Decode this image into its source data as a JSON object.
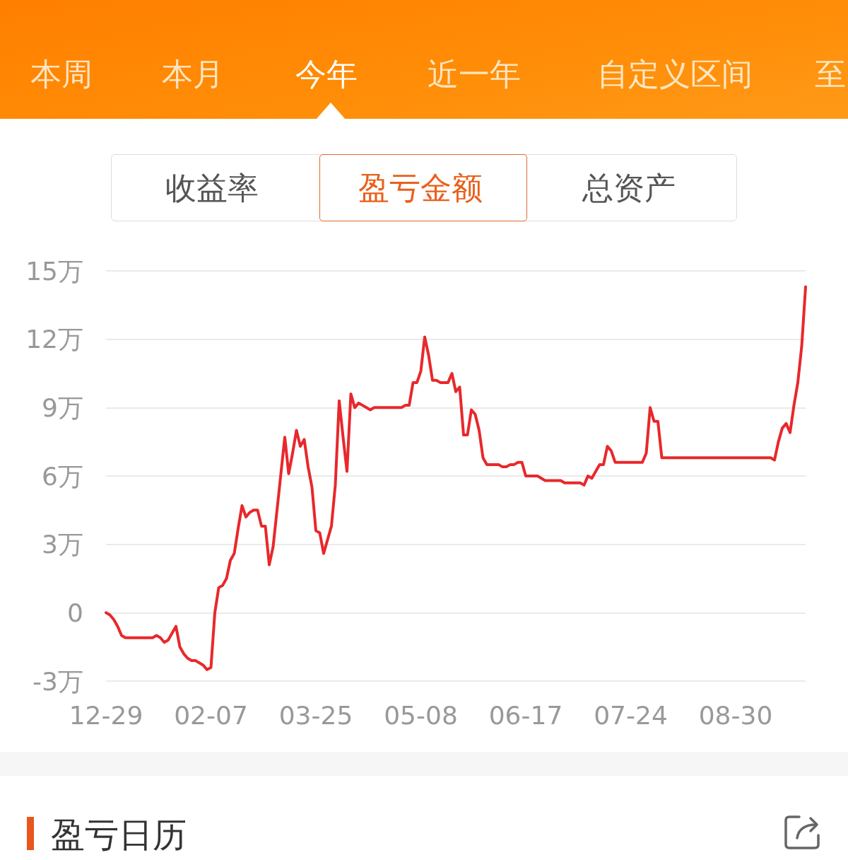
{
  "chart_data": {
    "type": "line",
    "annotations": [
      "本周",
      "本月",
      "今年",
      "近一年",
      "自定义区间",
      "至",
      "收益率",
      "盈亏金额",
      "总资产",
      "盈亏日历"
    ],
    "categories": [
      "12-29",
      null,
      null,
      null,
      null,
      null,
      null,
      null,
      null,
      null,
      null,
      null,
      null,
      null,
      null,
      null,
      null,
      null,
      null,
      null,
      null,
      null,
      null,
      null,
      null,
      null,
      null,
      "02-07",
      null,
      null,
      null,
      null,
      null,
      null,
      null,
      null,
      null,
      null,
      null,
      null,
      null,
      null,
      null,
      null,
      null,
      null,
      null,
      null,
      null,
      null,
      null,
      null,
      null,
      null,
      "03-25",
      null,
      null,
      null,
      null,
      null,
      null,
      null,
      null,
      null,
      null,
      null,
      null,
      null,
      null,
      null,
      null,
      null,
      null,
      null,
      null,
      null,
      null,
      null,
      null,
      null,
      null,
      "05-08",
      null,
      null,
      null,
      null,
      null,
      null,
      null,
      null,
      null,
      null,
      null,
      null,
      null,
      null,
      null,
      null,
      null,
      null,
      null,
      null,
      null,
      null,
      null,
      null,
      null,
      null,
      "06-17",
      null,
      null,
      null,
      null,
      null,
      null,
      null,
      null,
      null,
      null,
      null,
      null,
      null,
      null,
      null,
      null,
      null,
      null,
      null,
      null,
      null,
      null,
      null,
      null,
      null,
      null,
      "07-24",
      null,
      null,
      null,
      null,
      null,
      null,
      null,
      null,
      null,
      null,
      null,
      null,
      null,
      null,
      null,
      null,
      null,
      null,
      null,
      null,
      null,
      null,
      null,
      null,
      null,
      null,
      "08-30",
      null,
      null,
      null,
      null,
      null,
      null,
      null,
      null,
      null,
      null,
      null,
      null,
      null,
      null,
      null,
      null,
      null,
      null
    ],
    "values": [
      0,
      -0.1,
      -0.3,
      -0.6,
      -1,
      -1.1,
      -1.1,
      -1.1,
      -1.1,
      -1.1,
      -1.1,
      -1.1,
      -1.1,
      -1,
      -1.1,
      -1.3,
      -1.2,
      -0.9,
      -0.6,
      -1.5,
      -1.8,
      -2,
      -2.1,
      -2.1,
      -2.2,
      -2.3,
      -2.5,
      -2.4,
      0,
      1.1,
      1.2,
      1.5,
      2.3,
      2.6,
      3.7,
      4.7,
      4.2,
      4.4,
      4.5,
      4.5,
      3.8,
      3.8,
      2.1,
      2.9,
      4.5,
      6.1,
      7.7,
      6.1,
      7,
      8,
      7.3,
      7.6,
      6.4,
      5.5,
      3.6,
      3.5,
      2.6,
      3.2,
      3.8,
      5.6,
      9.3,
      7.7,
      6.2,
      9.6,
      9,
      9.2,
      9.1,
      9,
      8.9,
      9,
      9,
      9,
      9,
      9,
      9,
      9,
      9,
      9.1,
      9.1,
      10.1,
      10.1,
      10.6,
      12.1,
      11.3,
      10.2,
      10.2,
      10.1,
      10.1,
      10.1,
      10.5,
      9.7,
      9.9,
      7.8,
      7.8,
      8.9,
      8.7,
      8,
      6.8,
      6.5,
      6.5,
      6.5,
      6.5,
      6.4,
      6.4,
      6.5,
      6.5,
      6.6,
      6.6,
      6,
      6,
      6,
      6,
      5.9,
      5.8,
      5.8,
      5.8,
      5.8,
      5.8,
      5.7,
      5.7,
      5.7,
      5.7,
      5.7,
      5.6,
      6,
      5.9,
      6.2,
      6.5,
      6.5,
      7.3,
      7.1,
      6.6,
      6.6,
      6.6,
      6.6,
      6.6,
      6.6,
      6.6,
      6.6,
      7,
      9,
      8.4,
      8.4,
      6.8,
      6.8,
      6.8,
      6.8,
      6.8,
      6.8,
      6.8,
      6.8,
      6.8,
      6.8,
      6.8,
      6.8,
      6.8,
      6.8,
      6.8,
      6.8,
      6.8,
      6.8,
      6.8,
      6.8,
      6.8,
      6.8,
      6.8,
      6.8,
      6.8,
      6.8,
      6.8,
      6.8,
      6.8,
      6.7,
      7.5,
      8.1,
      8.3,
      7.9,
      9.1,
      10.1,
      11.7,
      14.3
    ],
    "color": "#e8282b",
    "ylim": [
      -3,
      15
    ],
    "yticks": [
      {
        "value": -3,
        "label": "-3万"
      },
      0,
      {
        "value": 3,
        "label": "3万"
      },
      {
        "value": 6,
        "label": "6万"
      },
      {
        "value": 9,
        "label": "9万"
      },
      {
        "value": 12,
        "label": "12万"
      },
      {
        "value": 15,
        "label": "15万"
      }
    ],
    "grid": "y",
    "marker": "none"
  }
}
